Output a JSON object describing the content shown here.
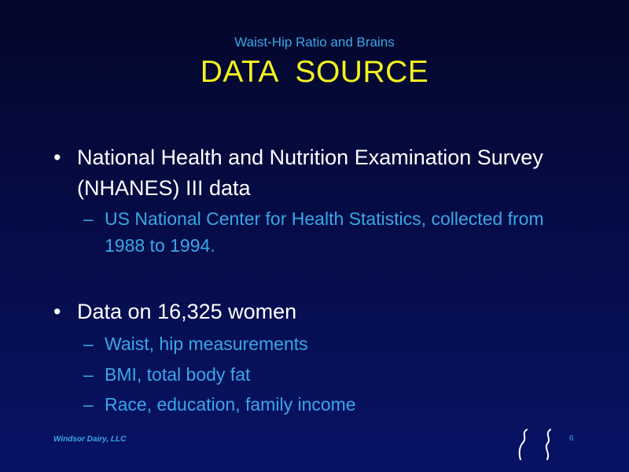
{
  "slide": {
    "subtitle": "Waist-Hip Ratio and Brains",
    "title": "DATA  SOURCE",
    "bullets": [
      {
        "marker": "•",
        "text": "National Health and Nutrition Examination Survey (NHANES) III data",
        "subitems": [
          {
            "marker": "–",
            "text": "US National Center for Health Statistics, collected from 1988 to 1994."
          }
        ]
      },
      {
        "marker": "•",
        "text": "Data on 16,325 women",
        "subitems": [
          {
            "marker": "–",
            "text": "Waist, hip measurements"
          },
          {
            "marker": "–",
            "text": "BMI, total body fat"
          },
          {
            "marker": "–",
            "text": "Race, education, family income"
          }
        ]
      }
    ],
    "footer": {
      "left": "Windsor Dairy, LLC",
      "page_number": "6"
    },
    "colors": {
      "title": "#f2f21e",
      "subtitle": "#3aa6e8",
      "bullet_text": "#ffffff",
      "sub_text": "#3aa6e8",
      "background_top": "#04072a",
      "background_bottom": "#081366"
    },
    "logo_icon": "hourglass-curves-icon"
  }
}
